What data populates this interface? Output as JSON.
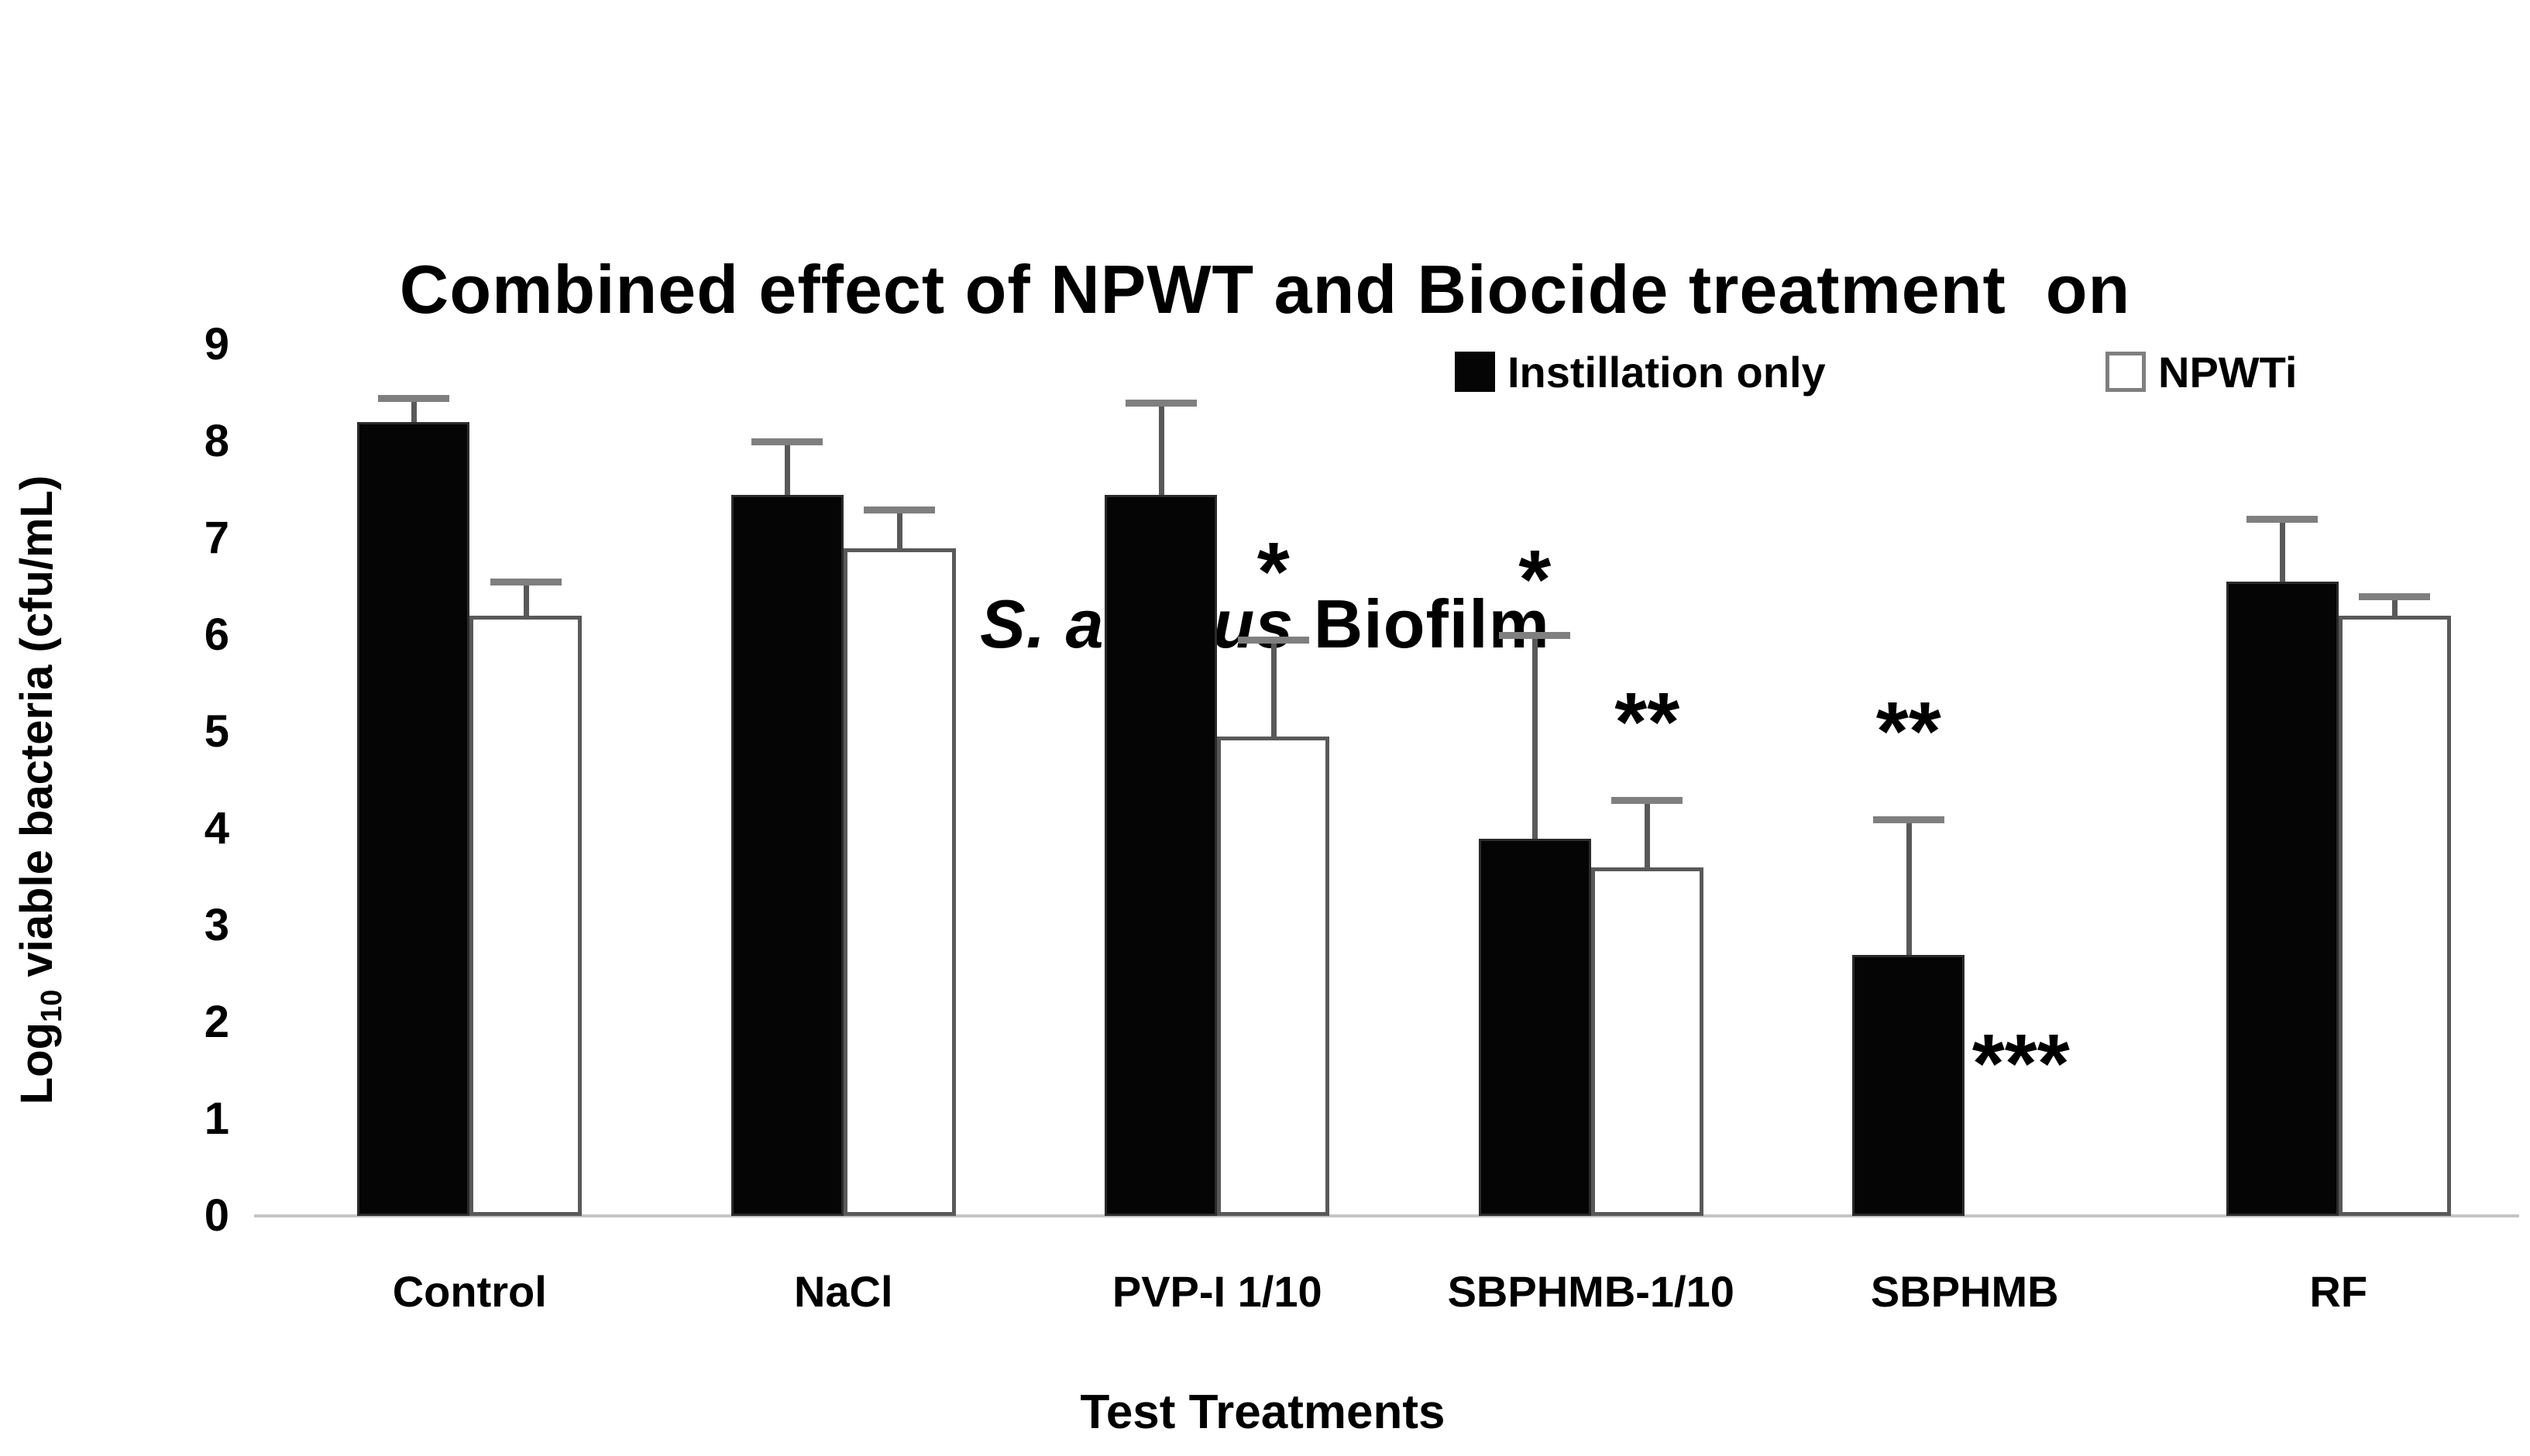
{
  "chart_data": {
    "type": "bar",
    "title_line1": "Combined effect of NPWT and Biocide treatment  on",
    "title_line2_italic": "S. aureus",
    "title_line2_rest": " Biofilm",
    "xlabel": "Test Treatments",
    "ylabel_parts": [
      "Log",
      "10",
      " viable bacteria (cfu/mL)"
    ],
    "categories": [
      "Control",
      "NaCl",
      "PVP-I 1/10",
      "SBPHMB-1/10",
      "SBPHMB",
      "RF"
    ],
    "series": [
      {
        "name": "Instillation only",
        "fill": "#000000",
        "values": [
          8.2,
          7.45,
          7.45,
          3.9,
          2.7,
          6.55
        ],
        "error_plus": [
          0.25,
          0.55,
          0.95,
          2.1,
          1.4,
          0.65
        ]
      },
      {
        "name": "NPWTi",
        "fill": "#ffffff",
        "values": [
          6.2,
          6.9,
          4.95,
          3.6,
          0,
          6.2
        ],
        "error_plus": [
          0.35,
          0.4,
          1.0,
          0.7,
          0,
          0.2
        ]
      }
    ],
    "annotations": [
      {
        "text": "*",
        "category_index": 2,
        "series_index": 1,
        "y_value": 6.8
      },
      {
        "text": "*",
        "category_index": 3,
        "series_index": 0,
        "y_value": 6.72
      },
      {
        "text": "**",
        "category_index": 3,
        "series_index": 1,
        "y_value": 5.25
      },
      {
        "text": "**",
        "category_index": 4,
        "series_index": 0,
        "y_value": 5.15
      },
      {
        "text": "***",
        "category_index": 4,
        "series_index": 1,
        "y_value": 1.72
      }
    ],
    "ylim": [
      0,
      9
    ],
    "yticks": [
      0,
      1,
      2,
      3,
      4,
      5,
      6,
      7,
      8,
      9
    ],
    "grid": "off",
    "legend_position": "inside-top-right",
    "colors": {
      "bar_black": "#050505",
      "bar_white_border": "#595959",
      "error_bar": "#595959",
      "baseline": "#c6c6c6",
      "text": "#000000"
    }
  }
}
